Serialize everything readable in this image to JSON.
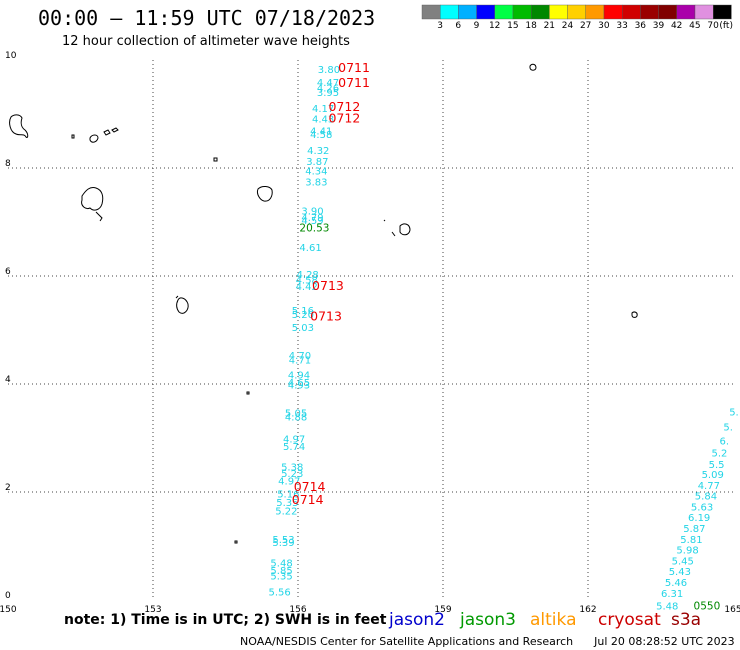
{
  "header": {
    "title": "00:00 – 11:59 UTC 07/18/2023",
    "subtitle": "12 hour collection of altimeter wave heights"
  },
  "colorbar": {
    "colors": [
      "#808080",
      "#00ffff",
      "#00b0ff",
      "#0000ff",
      "#00ff44",
      "#00bb00",
      "#008800",
      "#ffff00",
      "#ffd000",
      "#ff9900",
      "#ff0000",
      "#d00000",
      "#9a0000",
      "#800000",
      "#aa00aa",
      "#e090e0",
      "#000000"
    ],
    "labels": [
      "3",
      "6",
      "9",
      "12",
      "15",
      "18",
      "21",
      "24",
      "27",
      "30",
      "33",
      "36",
      "39",
      "42",
      "45",
      "70",
      "(ft)"
    ]
  },
  "axes": {
    "x_ticks": [
      "150",
      "153",
      "156",
      "159",
      "162",
      "165"
    ],
    "y_ticks": [
      "0",
      "2",
      "4",
      "6",
      "8",
      "10"
    ]
  },
  "observations": {
    "cyan": [
      {
        "lon": 156.64,
        "lat": 9.76,
        "v": "3.80"
      },
      {
        "lon": 156.62,
        "lat": 9.52,
        "v": "4.47"
      },
      {
        "lon": 156.62,
        "lat": 9.42,
        "v": "4.26"
      },
      {
        "lon": 156.62,
        "lat": 9.33,
        "v": "3.95"
      },
      {
        "lon": 156.52,
        "lat": 9.04,
        "v": "4.17"
      },
      {
        "lon": 156.52,
        "lat": 8.84,
        "v": "4.43"
      },
      {
        "lon": 156.48,
        "lat": 8.62,
        "v": "4.41"
      },
      {
        "lon": 156.48,
        "lat": 8.56,
        "v": "4.58"
      },
      {
        "lon": 156.42,
        "lat": 8.26,
        "v": "4.32"
      },
      {
        "lon": 156.4,
        "lat": 8.06,
        "v": "3.87"
      },
      {
        "lon": 156.38,
        "lat": 7.88,
        "v": "4.34"
      },
      {
        "lon": 156.38,
        "lat": 7.68,
        "v": "3.83"
      },
      {
        "lon": 156.3,
        "lat": 7.14,
        "v": "3.90"
      },
      {
        "lon": 156.3,
        "lat": 7.02,
        "v": "4.79"
      },
      {
        "lon": 156.3,
        "lat": 6.96,
        "v": "4.59"
      },
      {
        "lon": 156.26,
        "lat": 6.46,
        "v": "4.61"
      },
      {
        "lon": 156.2,
        "lat": 5.96,
        "v": "4.28"
      },
      {
        "lon": 156.18,
        "lat": 5.86,
        "v": "4.58"
      },
      {
        "lon": 156.18,
        "lat": 5.74,
        "v": "4.42"
      },
      {
        "lon": 156.1,
        "lat": 5.3,
        "v": "5.16"
      },
      {
        "lon": 156.1,
        "lat": 5.22,
        "v": "5.20"
      },
      {
        "lon": 156.1,
        "lat": 4.98,
        "v": "5.03"
      },
      {
        "lon": 156.04,
        "lat": 4.46,
        "v": "4.70"
      },
      {
        "lon": 156.04,
        "lat": 4.38,
        "v": "4.71"
      },
      {
        "lon": 156.02,
        "lat": 4.1,
        "v": "4.94"
      },
      {
        "lon": 156.02,
        "lat": 3.96,
        "v": "4.65"
      },
      {
        "lon": 156.02,
        "lat": 3.92,
        "v": "4.93"
      },
      {
        "lon": 155.96,
        "lat": 3.4,
        "v": "5.05"
      },
      {
        "lon": 155.96,
        "lat": 3.32,
        "v": "4.88"
      },
      {
        "lon": 155.92,
        "lat": 2.92,
        "v": "4.97"
      },
      {
        "lon": 155.92,
        "lat": 2.78,
        "v": "5.74"
      },
      {
        "lon": 155.88,
        "lat": 2.4,
        "v": "5.38"
      },
      {
        "lon": 155.88,
        "lat": 2.28,
        "v": "5.23"
      },
      {
        "lon": 155.82,
        "lat": 2.14,
        "v": "4.97"
      },
      {
        "lon": 155.8,
        "lat": 1.9,
        "v": "5.16"
      },
      {
        "lon": 155.78,
        "lat": 1.74,
        "v": "5.35"
      },
      {
        "lon": 155.76,
        "lat": 1.58,
        "v": "5.22"
      },
      {
        "lon": 155.7,
        "lat": 1.06,
        "v": "5.53"
      },
      {
        "lon": 155.7,
        "lat": 1.0,
        "v": "5.39"
      },
      {
        "lon": 155.66,
        "lat": 0.62,
        "v": "5.48"
      },
      {
        "lon": 155.66,
        "lat": 0.48,
        "v": "5.85"
      },
      {
        "lon": 155.66,
        "lat": 0.38,
        "v": "5.35"
      },
      {
        "lon": 155.62,
        "lat": 0.08,
        "v": "5.56"
      },
      {
        "lon": 165.02,
        "lat": 3.42,
        "v": "5."
      },
      {
        "lon": 164.9,
        "lat": 3.14,
        "v": "5."
      },
      {
        "lon": 164.82,
        "lat": 2.88,
        "v": "6."
      },
      {
        "lon": 164.72,
        "lat": 2.66,
        "v": "5.2"
      },
      {
        "lon": 164.66,
        "lat": 2.44,
        "v": "5.5"
      },
      {
        "lon": 164.58,
        "lat": 2.26,
        "v": "5.09"
      },
      {
        "lon": 164.5,
        "lat": 2.06,
        "v": "4.77"
      },
      {
        "lon": 164.44,
        "lat": 1.86,
        "v": "5.84"
      },
      {
        "lon": 164.36,
        "lat": 1.66,
        "v": "5.63"
      },
      {
        "lon": 164.3,
        "lat": 1.46,
        "v": "6.19"
      },
      {
        "lon": 164.2,
        "lat": 1.26,
        "v": "5.87"
      },
      {
        "lon": 164.14,
        "lat": 1.06,
        "v": "5.81"
      },
      {
        "lon": 164.06,
        "lat": 0.86,
        "v": "5.98"
      },
      {
        "lon": 163.96,
        "lat": 0.66,
        "v": "5.45"
      },
      {
        "lon": 163.9,
        "lat": 0.46,
        "v": "5.43"
      },
      {
        "lon": 163.82,
        "lat": 0.26,
        "v": "5.46"
      },
      {
        "lon": 163.74,
        "lat": 0.06,
        "v": "6.31"
      },
      {
        "lon": 163.64,
        "lat": -0.18,
        "v": "5.48"
      }
    ],
    "green": [
      {
        "lon": 156.34,
        "lat": 6.82,
        "v": "20.53"
      },
      {
        "lon": 164.46,
        "lat": -0.18,
        "v": "0550"
      }
    ],
    "red_times": [
      {
        "lon": 157.16,
        "lat": 9.78,
        "v": "0711"
      },
      {
        "lon": 157.16,
        "lat": 9.5,
        "v": "0711"
      },
      {
        "lon": 156.96,
        "lat": 9.06,
        "v": "0712"
      },
      {
        "lon": 156.96,
        "lat": 8.84,
        "v": "0712"
      },
      {
        "lon": 156.62,
        "lat": 5.74,
        "v": "0713"
      },
      {
        "lon": 156.58,
        "lat": 5.18,
        "v": "0713"
      },
      {
        "lon": 156.24,
        "lat": 2.02,
        "v": "0714"
      },
      {
        "lon": 156.2,
        "lat": 1.78,
        "v": "0714"
      }
    ]
  },
  "legend": {
    "note": "note: 1) Time is in UTC; 2) SWH is in feet",
    "satellites": [
      {
        "name": "jason2",
        "color": "#0000cc"
      },
      {
        "name": "jason3",
        "color": "#009900"
      },
      {
        "name": "altika",
        "color": "#ff9900"
      },
      {
        "name": "cryosat",
        "color": "#cc0000"
      },
      {
        "name": "s3a",
        "color": "#990000"
      }
    ]
  },
  "footer": {
    "credit": "NOAA/NESDIS Center for Satellite Applications and Research",
    "generated": "Jul 20 08:28:52 UTC 2023"
  }
}
